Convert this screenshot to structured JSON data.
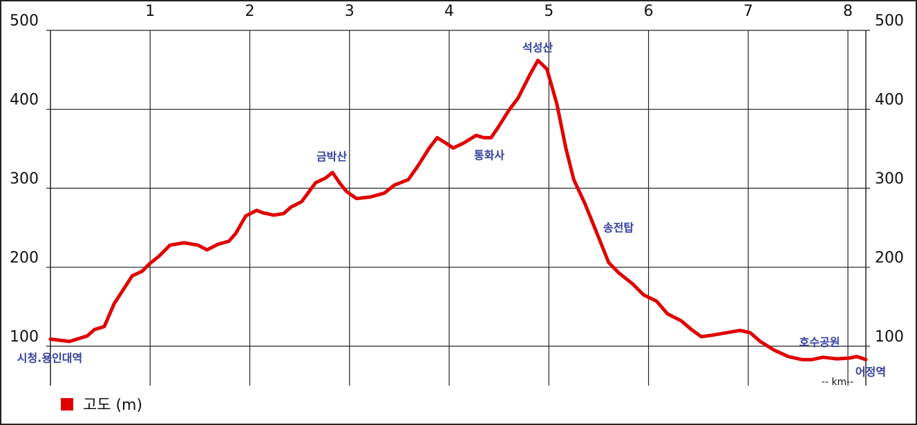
{
  "chart_data": {
    "type": "line",
    "x": [
      0,
      0.19,
      0.37,
      0.44,
      0.54,
      0.64,
      0.82,
      0.92,
      0.99,
      1.09,
      1.2,
      1.34,
      1.48,
      1.57,
      1.68,
      1.79,
      1.86,
      1.96,
      2.07,
      2.13,
      2.24,
      2.34,
      2.41,
      2.52,
      2.66,
      2.76,
      2.83,
      2.9,
      2.97,
      3.07,
      3.21,
      3.35,
      3.45,
      3.59,
      3.69,
      3.8,
      3.88,
      3.97,
      4.04,
      4.14,
      4.27,
      4.35,
      4.42,
      4.49,
      4.6,
      4.69,
      4.81,
      4.89,
      4.98,
      5.08,
      5.17,
      5.25,
      5.36,
      5.46,
      5.6,
      5.7,
      5.84,
      5.95,
      6.08,
      6.19,
      6.33,
      6.43,
      6.53,
      6.64,
      6.78,
      6.92,
      7.02,
      7.12,
      7.26,
      7.4,
      7.54,
      7.64,
      7.75,
      7.89,
      8.02,
      8.09,
      8.18
    ],
    "series": [
      {
        "name": "고도 (m)",
        "color": "#e00000",
        "values": [
          109,
          106,
          113,
          121,
          125,
          154,
          189,
          195,
          204,
          214,
          228,
          231,
          228,
          222,
          229,
          233,
          243,
          265,
          272,
          269,
          266,
          268,
          276,
          283,
          307,
          313,
          320,
          307,
          296,
          287,
          289,
          294,
          304,
          311,
          329,
          351,
          364,
          357,
          351,
          357,
          367,
          364,
          364,
          377,
          399,
          414,
          444,
          462,
          451,
          407,
          351,
          311,
          281,
          250,
          206,
          193,
          179,
          165,
          157,
          141,
          132,
          121,
          112,
          114,
          117,
          120,
          117,
          106,
          95,
          87,
          83,
          83,
          86,
          84,
          85,
          87,
          83
        ]
      }
    ],
    "xlim": [
      0,
      8.18
    ],
    "xticks": [
      1,
      2,
      3,
      4,
      5,
      6,
      7,
      8
    ],
    "ylim": [
      50,
      500
    ],
    "yticks": [
      100,
      200,
      300,
      400,
      500
    ],
    "grid": true,
    "xlabel": "-- km--",
    "annotations": [
      "시청.용인대역",
      "금박산",
      "통화사",
      "석성산",
      "송전탑",
      "호수공원",
      "어정역"
    ]
  }
}
